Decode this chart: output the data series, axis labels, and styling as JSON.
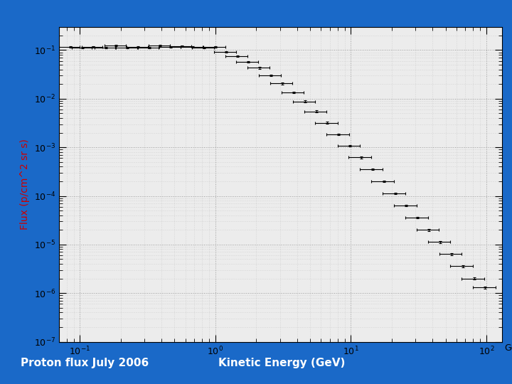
{
  "title": "Proton flux July 2006",
  "xlabel": "Kinetic Energy (GeV)",
  "ylabel": "Flux (p/cm^2 sr s)",
  "background_outer": "#1a69c8",
  "background_inner": "#ececec",
  "ylabel_color": "#cc0000",
  "title_color": "#ffffff",
  "xlim": [
    0.07,
    130
  ],
  "ylim": [
    1e-07,
    0.3
  ],
  "top_bar_height": 0.07,
  "bottom_bar_height": 0.11,
  "data_x": [
    0.085,
    0.105,
    0.125,
    0.155,
    0.185,
    0.225,
    0.27,
    0.325,
    0.39,
    0.47,
    0.565,
    0.68,
    0.825,
    1.0,
    1.2,
    1.45,
    1.75,
    2.12,
    2.58,
    3.12,
    3.78,
    4.58,
    5.55,
    6.72,
    8.15,
    9.85,
    11.9,
    14.4,
    17.5,
    21.2,
    25.7,
    31.1,
    37.7,
    45.7,
    55.3,
    67.0,
    81.2,
    98.3
  ],
  "data_y": [
    0.115,
    0.112,
    0.118,
    0.112,
    0.125,
    0.112,
    0.118,
    0.112,
    0.125,
    0.115,
    0.122,
    0.118,
    0.112,
    0.118,
    0.092,
    0.075,
    0.058,
    0.043,
    0.03,
    0.0205,
    0.0135,
    0.0088,
    0.0055,
    0.0032,
    0.00185,
    0.00108,
    0.00062,
    0.000355,
    0.0002,
    0.000113,
    6.35e-05,
    3.57e-05,
    2e-05,
    1.13e-05,
    6.35e-06,
    3.57e-06,
    2e-06,
    1.3e-06
  ],
  "data_xerr_lo": [
    0.015,
    0.018,
    0.022,
    0.027,
    0.033,
    0.04,
    0.048,
    0.058,
    0.07,
    0.085,
    0.103,
    0.125,
    0.152,
    0.184,
    0.223,
    0.27,
    0.328,
    0.397,
    0.481,
    0.583,
    0.707,
    0.857,
    1.038,
    1.259,
    1.526,
    1.85,
    2.242,
    2.717,
    3.293,
    3.992,
    4.838,
    5.865,
    7.108,
    8.613,
    10.44,
    12.65,
    15.33,
    18.58
  ],
  "data_xerr_hi": [
    0.015,
    0.018,
    0.022,
    0.027,
    0.033,
    0.04,
    0.048,
    0.058,
    0.07,
    0.085,
    0.103,
    0.125,
    0.152,
    0.184,
    0.223,
    0.27,
    0.328,
    0.397,
    0.481,
    0.583,
    0.707,
    0.857,
    1.038,
    1.259,
    1.526,
    1.85,
    2.242,
    2.717,
    3.293,
    3.992,
    4.838,
    5.865,
    7.108,
    8.613,
    10.44,
    12.65,
    15.33,
    18.58
  ],
  "data_yerr_lo": [
    0.004,
    0.004,
    0.004,
    0.004,
    0.005,
    0.004,
    0.004,
    0.004,
    0.005,
    0.004,
    0.004,
    0.004,
    0.004,
    0.004,
    0.003,
    0.003,
    0.002,
    0.0018,
    0.0013,
    0.00087,
    0.00057,
    0.00037,
    0.00023,
    0.000135,
    7.8e-05,
    4.56e-05,
    2.62e-05,
    1.5e-05,
    8.4e-06,
    4.8e-06,
    2.7e-06,
    1.52e-06,
    8.5e-07,
    4.8e-07,
    2.7e-07,
    1.52e-07,
    8.5e-08,
    5.5e-08
  ],
  "data_yerr_hi": [
    0.004,
    0.004,
    0.004,
    0.004,
    0.005,
    0.004,
    0.004,
    0.004,
    0.005,
    0.004,
    0.004,
    0.004,
    0.004,
    0.004,
    0.003,
    0.003,
    0.002,
    0.0018,
    0.0013,
    0.00087,
    0.00057,
    0.00037,
    0.00023,
    0.000135,
    7.8e-05,
    4.56e-05,
    2.62e-05,
    1.5e-05,
    8.4e-06,
    4.8e-06,
    2.7e-06,
    1.52e-06,
    8.5e-07,
    4.8e-07,
    2.7e-07,
    1.52e-07,
    8.5e-08,
    5.5e-08
  ]
}
